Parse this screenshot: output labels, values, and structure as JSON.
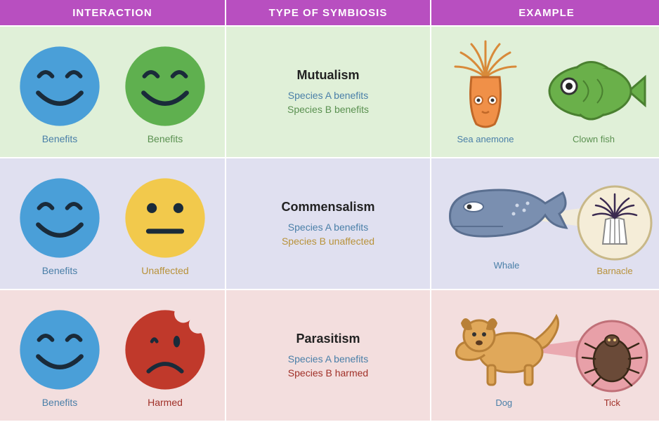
{
  "headers": {
    "interaction": "INTERACTION",
    "type": "TYPE OF SYMBIOSIS",
    "example": "EXAMPLE",
    "bg_color": "#b84fc0",
    "text_color": "#ffffff",
    "fontsize": 15
  },
  "colors": {
    "face_blue": "#4a9fd8",
    "face_green": "#5fb04f",
    "face_yellow": "#f2c94c",
    "face_red": "#c0392b",
    "stroke_dark": "#1a2b3a",
    "label_blue": "#4a7fa8",
    "label_green": "#5a9050",
    "label_yellow": "#b8923a",
    "label_red": "#a03028"
  },
  "rows": [
    {
      "bg_color": "#e0f0d8",
      "interaction": {
        "a": {
          "face": "benefits",
          "color": "#4a9fd8",
          "label": "Benefits",
          "label_color": "#4a7fa8"
        },
        "b": {
          "face": "benefits",
          "color": "#5fb04f",
          "label": "Benefits",
          "label_color": "#5a9050"
        }
      },
      "type": {
        "title": "Mutualism",
        "line_a": "Species A benefits",
        "line_a_color": "#4a7fa8",
        "line_b": "Species B benefits",
        "line_b_color": "#5a9050"
      },
      "example": {
        "a": {
          "label": "Sea anemone",
          "label_color": "#4a7fa8",
          "icon": "anemone"
        },
        "b": {
          "label": "Clown fish",
          "label_color": "#5a9050",
          "icon": "fish"
        }
      }
    },
    {
      "bg_color": "#e0e0f0",
      "interaction": {
        "a": {
          "face": "benefits",
          "color": "#4a9fd8",
          "label": "Benefits",
          "label_color": "#4a7fa8"
        },
        "b": {
          "face": "unaffected",
          "color": "#f2c94c",
          "label": "Unaffected",
          "label_color": "#b8923a"
        }
      },
      "type": {
        "title": "Commensalism",
        "line_a": "Species A benefits",
        "line_a_color": "#4a7fa8",
        "line_b": "Species B unaffected",
        "line_b_color": "#b8923a"
      },
      "example": {
        "a": {
          "label": "Whale",
          "label_color": "#4a7fa8",
          "icon": "whale"
        },
        "b": {
          "label": "Barnacle",
          "label_color": "#b8923a",
          "icon": "barnacle"
        }
      }
    },
    {
      "bg_color": "#f3dede",
      "interaction": {
        "a": {
          "face": "benefits",
          "color": "#4a9fd8",
          "label": "Benefits",
          "label_color": "#4a7fa8"
        },
        "b": {
          "face": "harmed",
          "color": "#c0392b",
          "label": "Harmed",
          "label_color": "#a03028"
        }
      },
      "type": {
        "title": "Parasitism",
        "line_a": "Species A benefits",
        "line_a_color": "#4a7fa8",
        "line_b": "Species B harmed",
        "line_b_color": "#a03028"
      },
      "example": {
        "a": {
          "label": "Dog",
          "label_color": "#4a7fa8",
          "icon": "dog"
        },
        "b": {
          "label": "Tick",
          "label_color": "#a03028",
          "icon": "tick"
        }
      }
    }
  ]
}
